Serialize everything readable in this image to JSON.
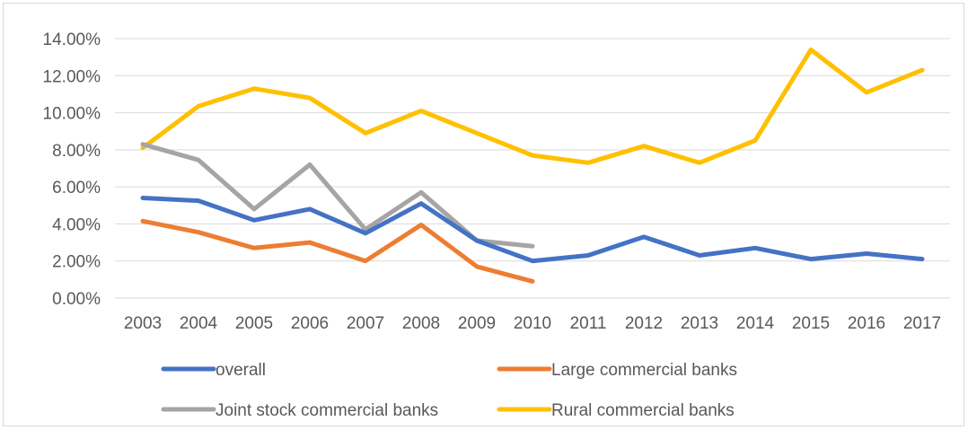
{
  "chart_data": {
    "type": "line",
    "title": "",
    "xlabel": "",
    "ylabel": "",
    "x": [
      "2003",
      "2004",
      "2005",
      "2006",
      "2007",
      "2008",
      "2009",
      "2010",
      "2011",
      "2012",
      "2013",
      "2014",
      "2015",
      "2016",
      "2017"
    ],
    "ylim": [
      0,
      0.14
    ],
    "yticks": [
      0,
      0.02,
      0.04,
      0.06,
      0.08,
      0.1,
      0.12,
      0.14
    ],
    "ytick_labels": [
      "0.00%",
      "2.00%",
      "4.00%",
      "6.00%",
      "8.00%",
      "10.00%",
      "12.00%",
      "14.00%"
    ],
    "grid": true,
    "legend_position": "bottom",
    "series": [
      {
        "name": "overall",
        "color": "#4472C4",
        "values": [
          0.054,
          0.0525,
          0.042,
          0.048,
          0.035,
          0.051,
          0.031,
          0.02,
          0.023,
          0.033,
          0.023,
          0.027,
          0.021,
          0.024,
          0.021
        ]
      },
      {
        "name": "Large commercial banks",
        "color": "#ED7D31",
        "values": [
          0.0415,
          0.0355,
          0.027,
          0.03,
          0.02,
          0.0395,
          0.017,
          0.009,
          null,
          null,
          null,
          null,
          null,
          null,
          null
        ]
      },
      {
        "name": "Joint stock commercial banks",
        "color": "#A5A5A5",
        "values": [
          0.083,
          0.0745,
          0.048,
          0.072,
          0.037,
          0.057,
          0.031,
          0.028,
          null,
          null,
          null,
          null,
          null,
          null,
          null
        ]
      },
      {
        "name": "Rural commercial banks",
        "color": "#FFC000",
        "values": [
          0.081,
          0.1035,
          0.113,
          0.108,
          0.089,
          0.101,
          0.089,
          0.077,
          0.073,
          0.082,
          0.073,
          0.085,
          0.134,
          0.111,
          0.123
        ]
      }
    ]
  }
}
